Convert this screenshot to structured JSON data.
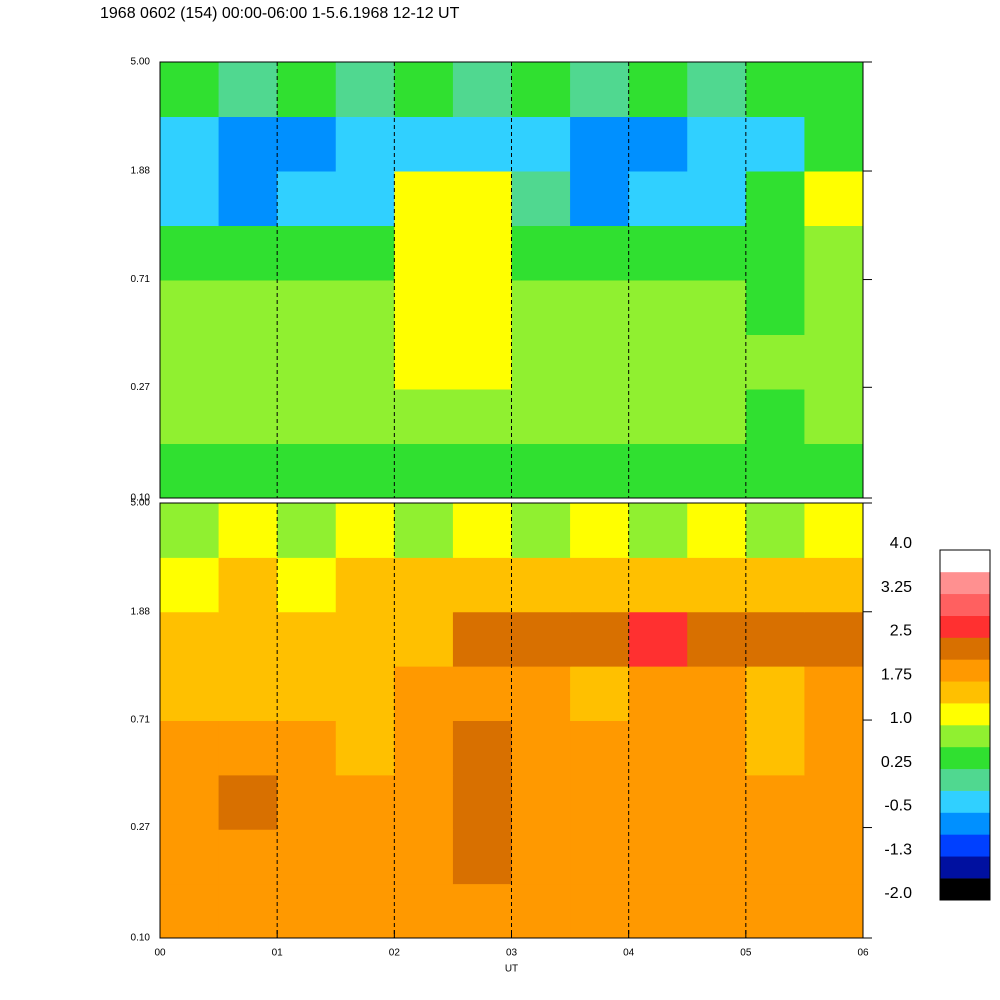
{
  "title": "1968 0602 (154) 00:00-06:00 1-5.6.1968  12-12 UT",
  "chart_data": [
    {
      "type": "heatmap",
      "log_y": true,
      "xlim": [
        0,
        6
      ],
      "ylim": [
        0.1,
        5
      ],
      "xticks": [
        {
          "value": 0,
          "label": "00"
        },
        {
          "value": 1,
          "label": "01"
        },
        {
          "value": 2,
          "label": "02"
        },
        {
          "value": 3,
          "label": "03"
        },
        {
          "value": 4,
          "label": "04"
        },
        {
          "value": 5,
          "label": "05"
        },
        {
          "value": 6,
          "label": "06"
        }
      ],
      "yticks": [
        {
          "value": 0.1,
          "label": "0.10"
        },
        0.27,
        0.71,
        1.88,
        {
          "value": 5,
          "label": "5.00"
        }
      ],
      "xtick_labels": false,
      "z": [
        [
          0.6,
          0.5,
          0.6,
          0.5,
          0.6,
          0.5,
          0.6,
          0.5,
          0.6,
          0.5,
          0.6,
          0.5
        ],
        [
          0.7,
          0.7,
          0.8,
          0.7,
          0.9,
          0.8,
          0.7,
          0.8,
          0.7,
          0.7,
          0.6,
          0.7
        ],
        [
          0.8,
          0.9,
          0.8,
          0.9,
          1.0,
          1.1,
          0.9,
          0.8,
          0.9,
          0.8,
          0.7,
          0.8
        ],
        [
          0.9,
          0.8,
          0.7,
          0.9,
          1.1,
          1.2,
          0.8,
          0.7,
          0.8,
          0.7,
          0.6,
          0.8
        ],
        [
          0.5,
          0.3,
          0.4,
          0.6,
          1.0,
          1.1,
          0.6,
          0.5,
          0.3,
          0.4,
          0.6,
          0.9
        ],
        [
          -0.3,
          -0.8,
          -0.5,
          -0.4,
          1.1,
          1.2,
          0.2,
          -0.6,
          -0.5,
          -0.2,
          0.4,
          1.0
        ],
        [
          -0.5,
          -0.7,
          -0.6,
          -0.5,
          -0.2,
          -0.3,
          -0.4,
          -0.7,
          -0.6,
          -0.5,
          -0.2,
          0.3
        ],
        [
          0.3,
          0.2,
          0.3,
          0.2,
          0.3,
          0.2,
          0.3,
          0.2,
          0.3,
          0.2,
          0.3,
          0.4
        ]
      ]
    },
    {
      "type": "heatmap",
      "log_y": true,
      "xlim": [
        0,
        6
      ],
      "ylim": [
        0.1,
        5
      ],
      "xticks": [
        {
          "value": 0,
          "label": "00"
        },
        {
          "value": 1,
          "label": "01"
        },
        {
          "value": 2,
          "label": "02"
        },
        {
          "value": 3,
          "label": "03"
        },
        {
          "value": 4,
          "label": "04"
        },
        {
          "value": 5,
          "label": "05"
        },
        {
          "value": 6,
          "label": "06"
        }
      ],
      "yticks": [
        {
          "value": 0.1,
          "label": "0.10"
        },
        0.27,
        0.71,
        1.88,
        {
          "value": 5,
          "label": "5.00"
        }
      ],
      "xtick_labels": true,
      "xlabel": "UT",
      "z": [
        [
          2.0,
          2.1,
          2.0,
          2.1,
          1.9,
          2.0,
          2.0,
          2.1,
          2.0,
          1.9,
          2.0,
          1.9
        ],
        [
          1.9,
          2.0,
          1.8,
          1.9,
          2.1,
          2.2,
          2.0,
          1.9,
          2.0,
          1.9,
          1.8,
          2.0
        ],
        [
          2.1,
          2.2,
          1.9,
          1.8,
          2.0,
          2.3,
          2.1,
          1.9,
          1.9,
          2.0,
          1.8,
          2.0
        ],
        [
          2.0,
          2.1,
          1.8,
          1.7,
          1.9,
          2.2,
          2.0,
          1.8,
          1.9,
          1.8,
          1.7,
          1.8
        ],
        [
          1.6,
          1.7,
          1.5,
          1.4,
          1.8,
          2.0,
          1.9,
          1.7,
          1.8,
          1.8,
          1.7,
          1.9
        ],
        [
          1.5,
          1.6,
          1.4,
          1.5,
          1.6,
          2.4,
          2.4,
          2.4,
          2.5,
          2.4,
          2.4,
          2.4
        ],
        [
          1.3,
          1.4,
          1.3,
          1.4,
          1.5,
          1.6,
          1.5,
          1.7,
          1.6,
          1.5,
          1.4,
          1.5
        ],
        [
          0.9,
          1.0,
          0.9,
          1.0,
          0.9,
          1.0,
          0.9,
          1.0,
          0.9,
          1.0,
          0.9,
          1.0
        ]
      ]
    }
  ],
  "colorscale": {
    "clim": [
      -2,
      4
    ],
    "colors": [
      "#000000",
      "#0010a0",
      "#0040ff",
      "#0090ff",
      "#30d0ff",
      "#50d890",
      "#30e030",
      "#90f030",
      "#ffff00",
      "#ffc000",
      "#ff9900",
      "#d87000",
      "#ff3030",
      "#ff6060",
      "#ff9090",
      "#ffffff"
    ],
    "ticks": [
      {
        "value": -2,
        "label": "-2.0"
      },
      {
        "value": -1.25,
        "label": "-1.3"
      },
      -0.5,
      0.25,
      {
        "value": 1,
        "label": "1.0"
      },
      1.75,
      2.5,
      3.25,
      {
        "value": 4,
        "label": "4.0"
      }
    ]
  }
}
